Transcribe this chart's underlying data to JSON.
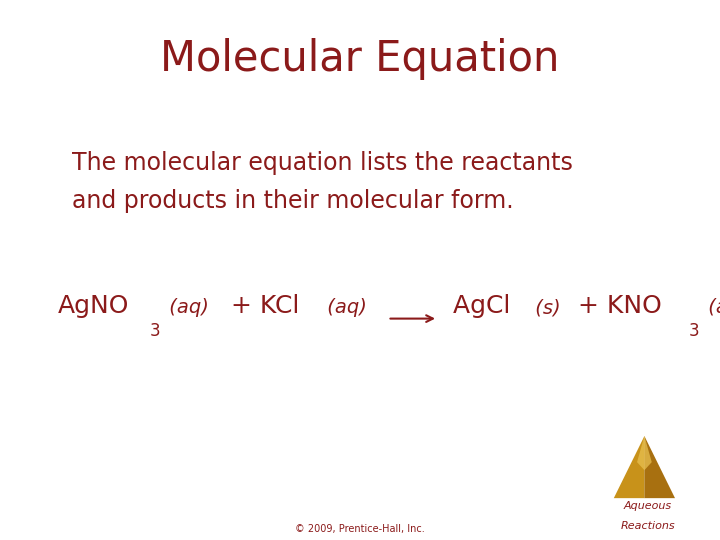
{
  "title": "Molecular Equation",
  "title_color": "#8B1A1A",
  "title_fontsize": 30,
  "body_text_line1": "The molecular equation lists the reactants",
  "body_text_line2": "and products in their molecular form.",
  "body_color": "#8B1A1A",
  "body_fontsize": 17,
  "background_color": "#FFFFFF",
  "equation_color": "#8B1A1A",
  "eq_main_fs": 18,
  "eq_sub_fs": 12,
  "eq_it_fs": 14,
  "copyright_text": "© 2009, Prentice-Hall, Inc.",
  "copyright_color": "#8B1A1A",
  "copyright_fontsize": 7,
  "badge_text_line1": "Aqueous",
  "badge_text_line2": "Reactions",
  "badge_text_color": "#8B1A1A",
  "badge_fontsize": 8,
  "triangle_color_left": "#C8921A",
  "triangle_color_right": "#A87010",
  "triangle_color_highlight": "#E8C050"
}
